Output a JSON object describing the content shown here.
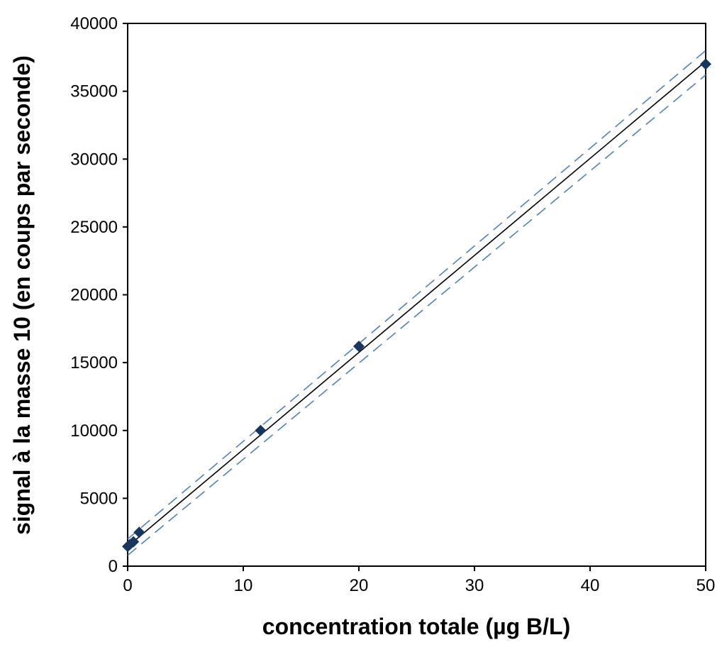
{
  "chart_data": {
    "type": "scatter",
    "title": "",
    "xlabel": "concentration totale (µg B/L)",
    "ylabel": "signal à la masse 10 (en coups par seconde)",
    "xlim": [
      0,
      50
    ],
    "ylim": [
      0,
      40000
    ],
    "x_ticks": [
      0,
      10,
      20,
      30,
      40,
      50
    ],
    "y_ticks": [
      0,
      5000,
      10000,
      15000,
      20000,
      25000,
      30000,
      35000,
      40000
    ],
    "grid": false,
    "legend": "none",
    "series": [
      {
        "kind": "points",
        "marker": "diamond",
        "color": "#17375e",
        "x": [
          0,
          0.2,
          0.5,
          1,
          11.5,
          20,
          50
        ],
        "y": [
          1450,
          1600,
          1800,
          2500,
          10000,
          16200,
          37000
        ]
      },
      {
        "kind": "fit-line",
        "style": "solid",
        "color": "#000000",
        "x": [
          0,
          50
        ],
        "y": [
          1450,
          37200
        ]
      },
      {
        "kind": "confidence-upper",
        "style": "dashed",
        "color": "#4f81bd",
        "x": [
          0,
          50
        ],
        "y": [
          2000,
          38000
        ]
      },
      {
        "kind": "confidence-lower",
        "style": "dashed",
        "color": "#4f81bd",
        "x": [
          0,
          50
        ],
        "y": [
          800,
          36200
        ]
      }
    ]
  }
}
